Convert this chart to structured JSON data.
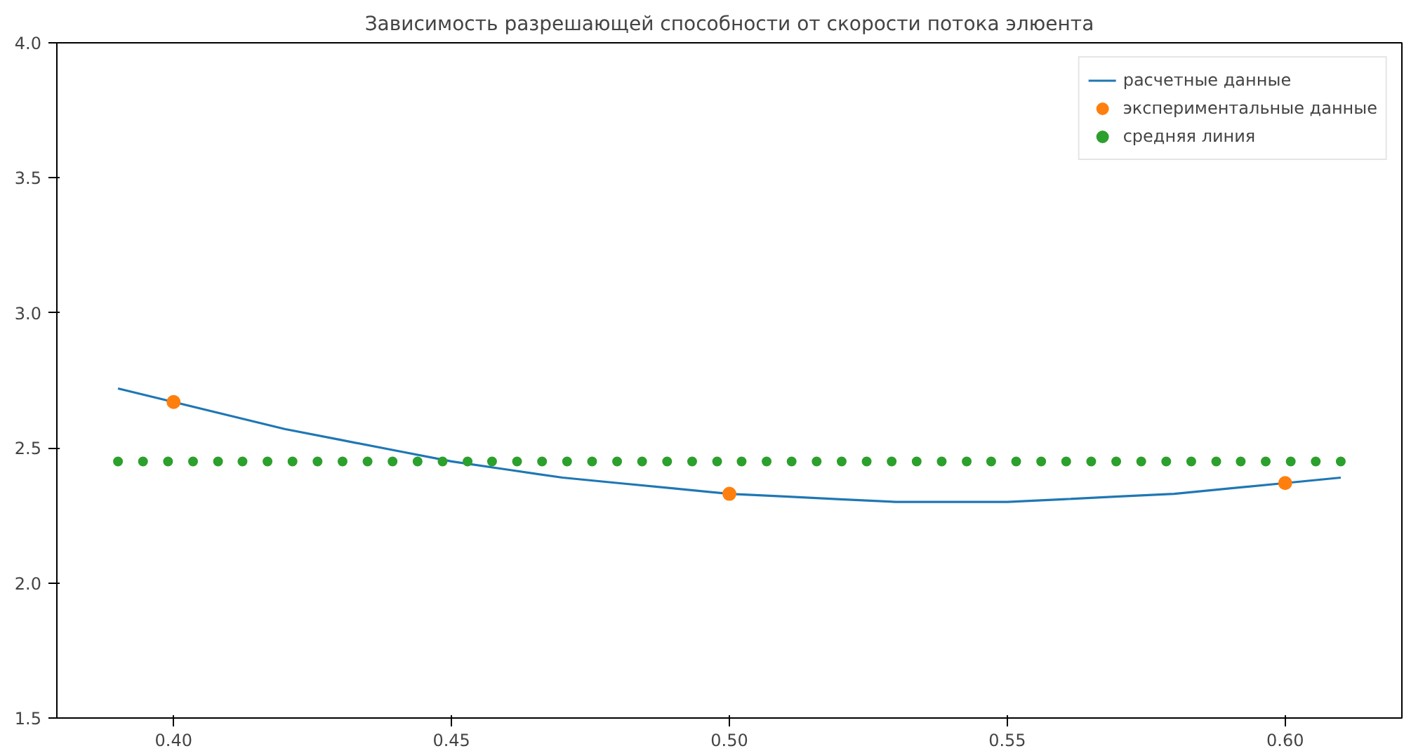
{
  "chart_data": {
    "type": "line",
    "title": "Зависимость разрешающей способности от скорости потока элюента",
    "xlim": [
      0.379,
      0.621
    ],
    "ylim": [
      1.5,
      4.0
    ],
    "xticks": [
      {
        "value": 0.4,
        "label": "0.40"
      },
      {
        "value": 0.45,
        "label": "0.45"
      },
      {
        "value": 0.5,
        "label": "0.50"
      },
      {
        "value": 0.55,
        "label": "0.55"
      },
      {
        "value": 0.6,
        "label": "0.60"
      }
    ],
    "yticks": [
      {
        "value": 1.5,
        "label": "1.5"
      },
      {
        "value": 2.0,
        "label": "2.0"
      },
      {
        "value": 2.5,
        "label": "2.5"
      },
      {
        "value": 3.0,
        "label": "3.0"
      },
      {
        "value": 3.5,
        "label": "3.5"
      },
      {
        "value": 4.0,
        "label": "4.0"
      }
    ],
    "grid": false,
    "legend": "top right",
    "line_style": "solid",
    "series": [
      {
        "name": "расчетные данные",
        "marker": "none",
        "color": "#1f77b4",
        "x": [
          0.39,
          0.4,
          0.41,
          0.42,
          0.43,
          0.44,
          0.45,
          0.46,
          0.47,
          0.48,
          0.49,
          0.5,
          0.51,
          0.52,
          0.53,
          0.54,
          0.55,
          0.56,
          0.57,
          0.58,
          0.59,
          0.6,
          0.61
        ],
        "values": [
          2.72,
          2.67,
          2.62,
          2.57,
          2.53,
          2.49,
          2.45,
          2.42,
          2.39,
          2.37,
          2.35,
          2.33,
          2.32,
          2.31,
          2.3,
          2.3,
          2.3,
          2.31,
          2.32,
          2.33,
          2.35,
          2.37,
          2.39
        ]
      },
      {
        "name": "экспериментальные данные",
        "type": "scatter",
        "marker": "circle",
        "color": "#ff7f0e",
        "x": [
          0.4,
          0.5,
          0.6
        ],
        "values": [
          2.67,
          2.33,
          2.37
        ]
      },
      {
        "name": "средняя линия",
        "type": "scatter",
        "marker": "circle",
        "color": "#2ca02c",
        "x": [
          0.39,
          0.3945,
          0.399,
          0.4035,
          0.408,
          0.4124,
          0.4169,
          0.4214,
          0.4259,
          0.4304,
          0.4349,
          0.4394,
          0.4439,
          0.4484,
          0.4529,
          0.4573,
          0.4618,
          0.4663,
          0.4708,
          0.4753,
          0.4798,
          0.4843,
          0.4888,
          0.4933,
          0.4978,
          0.5022,
          0.5067,
          0.5112,
          0.5157,
          0.5202,
          0.5247,
          0.5292,
          0.5337,
          0.5382,
          0.5427,
          0.5471,
          0.5516,
          0.5561,
          0.5606,
          0.5651,
          0.5696,
          0.5741,
          0.5786,
          0.5831,
          0.5876,
          0.592,
          0.5965,
          0.601,
          0.6055,
          0.61
        ],
        "values": [
          2.45,
          2.45,
          2.45,
          2.45,
          2.45,
          2.45,
          2.45,
          2.45,
          2.45,
          2.45,
          2.45,
          2.45,
          2.45,
          2.45,
          2.45,
          2.45,
          2.45,
          2.45,
          2.45,
          2.45,
          2.45,
          2.45,
          2.45,
          2.45,
          2.45,
          2.45,
          2.45,
          2.45,
          2.45,
          2.45,
          2.45,
          2.45,
          2.45,
          2.45,
          2.45,
          2.45,
          2.45,
          2.45,
          2.45,
          2.45,
          2.45,
          2.45,
          2.45,
          2.45,
          2.45,
          2.45,
          2.45,
          2.45,
          2.45,
          2.45
        ]
      }
    ]
  }
}
